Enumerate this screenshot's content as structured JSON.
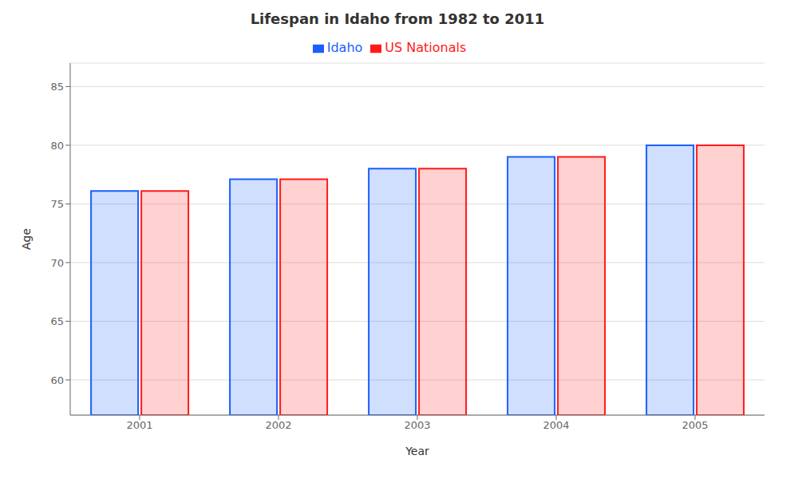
{
  "chart_data": {
    "type": "bar",
    "title": "Lifespan in Idaho from 1982 to 2011",
    "x_label": "Year",
    "y_label": "Age",
    "categories": [
      "2001",
      "2002",
      "2003",
      "2004",
      "2005"
    ],
    "series": [
      {
        "name": "Idaho",
        "color": "#1a5fff",
        "values": [
          76.1,
          77.1,
          78.0,
          79.0,
          80.0
        ]
      },
      {
        "name": "US Nationals",
        "color": "#ff1a1a",
        "values": [
          76.1,
          77.1,
          78.0,
          79.0,
          80.0
        ]
      }
    ],
    "ylim": [
      57,
      87
    ],
    "yticks": [
      60,
      65,
      70,
      75,
      80,
      85
    ],
    "grid": true,
    "legend": "upper center"
  }
}
